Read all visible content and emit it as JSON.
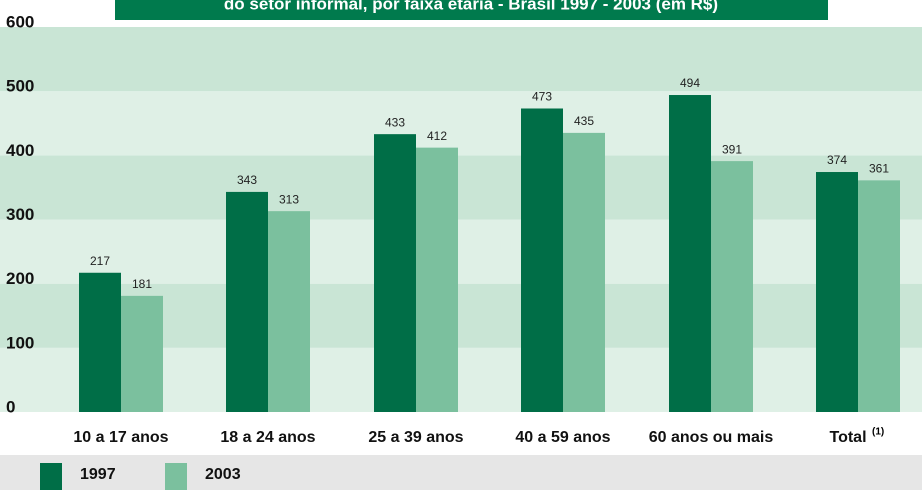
{
  "chart_data": {
    "type": "bar",
    "title": "do setor informal, por faixa etária - Brasil 1997 - 2003 (em R$)",
    "categories": [
      "10 a 17 anos",
      "18 a 24 anos",
      "25 a 39 anos",
      "40 a 59 anos",
      "60 anos ou mais",
      "Total"
    ],
    "total_note": "(1)",
    "series": [
      {
        "name": "1997",
        "color": "#006e47",
        "values": [
          217,
          343,
          433,
          473,
          494,
          374
        ]
      },
      {
        "name": "2003",
        "color": "#7bc09e",
        "values": [
          181,
          313,
          412,
          435,
          391,
          361
        ]
      }
    ],
    "ylim": [
      0,
      600
    ],
    "yticks": [
      0,
      100,
      200,
      300,
      400,
      500,
      600
    ],
    "band_colors": [
      "#dff0e6",
      "#c9e5d5"
    ]
  }
}
